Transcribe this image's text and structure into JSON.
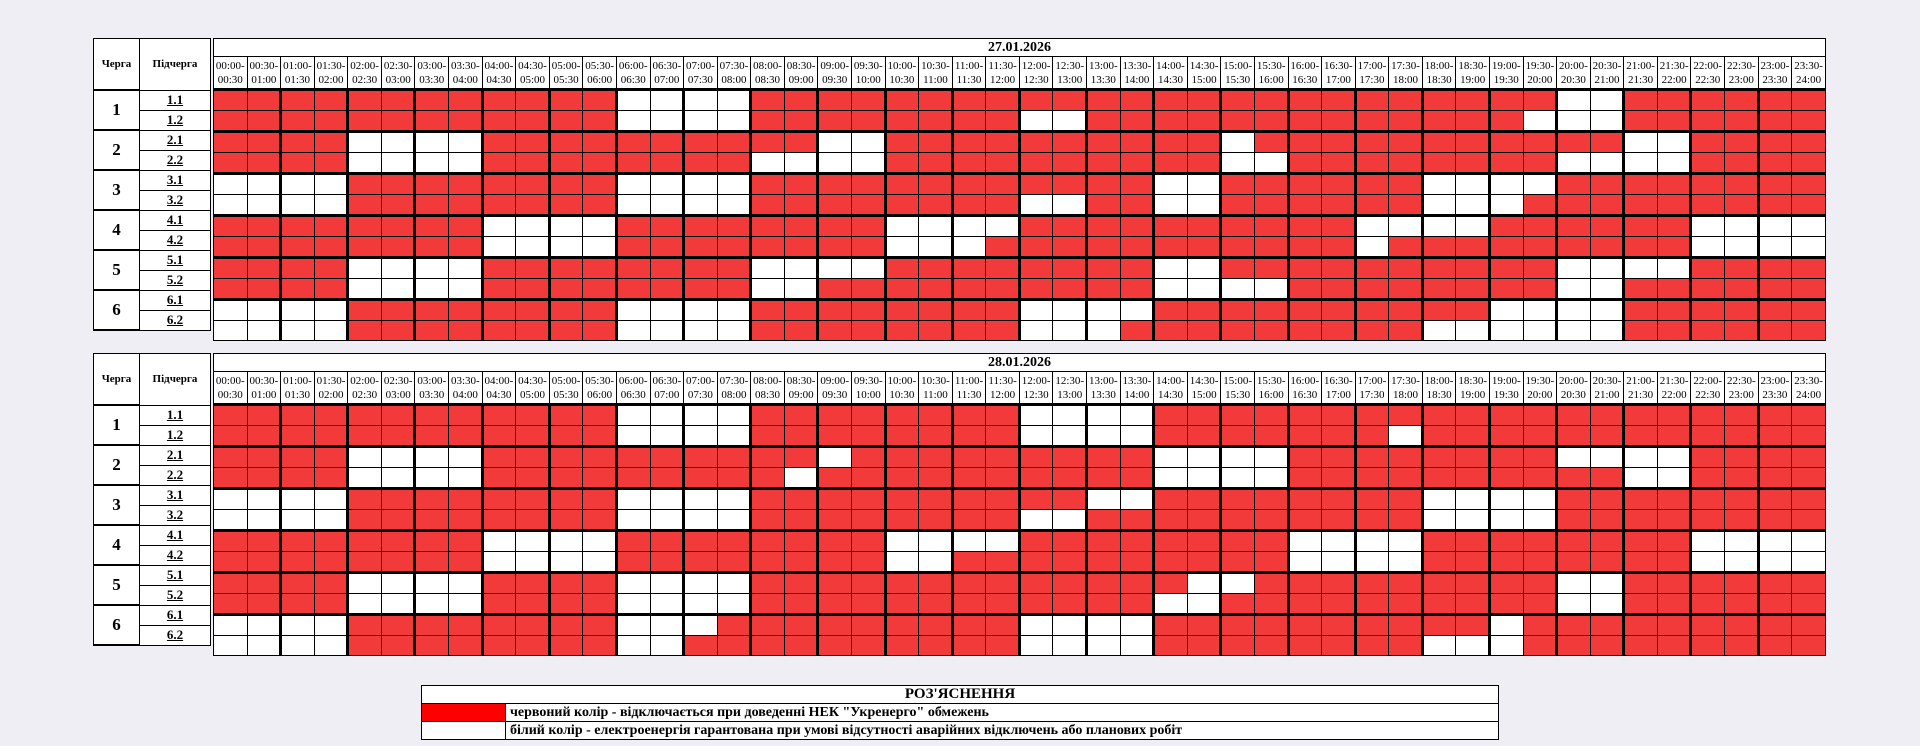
{
  "headers": {
    "queue": "Черга",
    "subqueue": "Підчерга"
  },
  "colors": {
    "off": "#f23a3a",
    "on": "#ffffff"
  },
  "slots": [
    {
      "from": "00:00-",
      "to": "00:30"
    },
    {
      "from": "00:30-",
      "to": "01:00"
    },
    {
      "from": "01:00-",
      "to": "01:30"
    },
    {
      "from": "01:30-",
      "to": "02:00"
    },
    {
      "from": "02:00-",
      "to": "02:30"
    },
    {
      "from": "02:30-",
      "to": "03:00"
    },
    {
      "from": "03:00-",
      "to": "03:30"
    },
    {
      "from": "03:30-",
      "to": "04:00"
    },
    {
      "from": "04:00-",
      "to": "04:30"
    },
    {
      "from": "04:30-",
      "to": "05:00"
    },
    {
      "from": "05:00-",
      "to": "05:30"
    },
    {
      "from": "05:30-",
      "to": "06:00"
    },
    {
      "from": "06:00-",
      "to": "06:30"
    },
    {
      "from": "06:30-",
      "to": "07:00"
    },
    {
      "from": "07:00-",
      "to": "07:30"
    },
    {
      "from": "07:30-",
      "to": "08:00"
    },
    {
      "from": "08:00-",
      "to": "08:30"
    },
    {
      "from": "08:30-",
      "to": "09:00"
    },
    {
      "from": "09:00-",
      "to": "09:30"
    },
    {
      "from": "09:30-",
      "to": "10:00"
    },
    {
      "from": "10:00-",
      "to": "10:30"
    },
    {
      "from": "10:30-",
      "to": "11:00"
    },
    {
      "from": "11:00-",
      "to": "11:30"
    },
    {
      "from": "11:30-",
      "to": "12:00"
    },
    {
      "from": "12:00-",
      "to": "12:30"
    },
    {
      "from": "12:30-",
      "to": "13:00"
    },
    {
      "from": "13:00-",
      "to": "13:30"
    },
    {
      "from": "13:30-",
      "to": "14:00"
    },
    {
      "from": "14:00-",
      "to": "14:30"
    },
    {
      "from": "14:30-",
      "to": "15:00"
    },
    {
      "from": "15:00-",
      "to": "15:30"
    },
    {
      "from": "15:30-",
      "to": "16:00"
    },
    {
      "from": "16:00-",
      "to": "16:30"
    },
    {
      "from": "16:30-",
      "to": "17:00"
    },
    {
      "from": "17:00-",
      "to": "17:30"
    },
    {
      "from": "17:30-",
      "to": "18:00"
    },
    {
      "from": "18:00-",
      "to": "18:30"
    },
    {
      "from": "18:30-",
      "to": "19:00"
    },
    {
      "from": "19:00-",
      "to": "19:30"
    },
    {
      "from": "19:30-",
      "to": "20:00"
    },
    {
      "from": "20:00-",
      "to": "20:30"
    },
    {
      "from": "20:30-",
      "to": "21:00"
    },
    {
      "from": "21:00-",
      "to": "21:30"
    },
    {
      "from": "21:30-",
      "to": "22:00"
    },
    {
      "from": "22:00-",
      "to": "22:30"
    },
    {
      "from": "22:30-",
      "to": "23:00"
    },
    {
      "from": "23:00-",
      "to": "23:30"
    },
    {
      "from": "23:30-",
      "to": "24:00"
    }
  ],
  "schedules": [
    {
      "date": "27.01.2026",
      "queues": [
        {
          "label": "1",
          "subqueues": [
            {
              "label": "1.1",
              "outages": "111111111111000011111111111111111111111100111111"
            },
            {
              "label": "1.2",
              "outages": "111111111111000011111111001111111111111000111111"
            }
          ]
        },
        {
          "label": "2",
          "subqueues": [
            {
              "label": "2.1",
              "outages": "111100001111111111001111111111011111111111001111"
            },
            {
              "label": "2.2",
              "outages": "111100001111111100001111111111001111111100001111"
            }
          ]
        },
        {
          "label": "3",
          "subqueues": [
            {
              "label": "3.1",
              "outages": "000011111111000011111111111100111111000011111111"
            },
            {
              "label": "3.2",
              "outages": "000011111111000011111111001100111111000111111111"
            }
          ]
        },
        {
          "label": "4",
          "subqueues": [
            {
              "label": "4.1",
              "outages": "111111110000111111110000111111111100001111110000"
            },
            {
              "label": "4.2",
              "outages": "111111110000111111110001111111111101111111110000"
            }
          ]
        },
        {
          "label": "5",
          "subqueues": [
            {
              "label": "5.1",
              "outages": "111100001111111100001111111100111111111100001111"
            },
            {
              "label": "5.2",
              "outages": "111100001111111100111111111100001111111100111111"
            }
          ]
        },
        {
          "label": "6",
          "subqueues": [
            {
              "label": "6.1",
              "outages": "000011111111000011111111000011111111110000111111"
            },
            {
              "label": "6.2",
              "outages": "000011111111000011111111000111111111000000111111"
            }
          ]
        }
      ]
    },
    {
      "date": "28.01.2026",
      "queues": [
        {
          "label": "1",
          "subqueues": [
            {
              "label": "1.1",
              "outages": "111111111111000011111111000011111111111111111111"
            },
            {
              "label": "1.2",
              "outages": "111111111111000011111111000011111110111111111111"
            }
          ]
        },
        {
          "label": "2",
          "subqueues": [
            {
              "label": "2.1",
              "outages": "111100001111111111011111111100001111111100001111"
            },
            {
              "label": "2.2",
              "outages": "111100001111111110111111111100001111111111001111"
            }
          ]
        },
        {
          "label": "3",
          "subqueues": [
            {
              "label": "3.1",
              "outages": "000011111111000011111111110011111111000011111111"
            },
            {
              "label": "3.2",
              "outages": "000011111111000011111111001111111111000011111111"
            }
          ]
        },
        {
          "label": "4",
          "subqueues": [
            {
              "label": "4.1",
              "outages": "111111110000111111110000111111110000111111110000"
            },
            {
              "label": "4.2",
              "outages": "111111110000111111110011111111110000111111110000"
            }
          ]
        },
        {
          "label": "5",
          "subqueues": [
            {
              "label": "5.1",
              "outages": "111100001111000011111111111110011111111100111111"
            },
            {
              "label": "5.2",
              "outages": "111100001111000011111111111100111111111100111111"
            }
          ]
        },
        {
          "label": "6",
          "subqueues": [
            {
              "label": "6.1",
              "outages": "000011111111000111111111000011111111110111111111"
            },
            {
              "label": "6.2",
              "outages": "000011111111001111111111000011111111000111111111"
            }
          ]
        }
      ]
    }
  ],
  "legend": {
    "title": "РОЗ'ЯСНЕННЯ",
    "items": [
      {
        "color": "red",
        "text": "червоний колір - відключається при доведенні НЕК \"Укренерго\" обмежень"
      },
      {
        "color": "white",
        "text": "білий колір - електроенергія гарантована при умові відсутності аварійних відключень або планових робіт"
      }
    ]
  }
}
